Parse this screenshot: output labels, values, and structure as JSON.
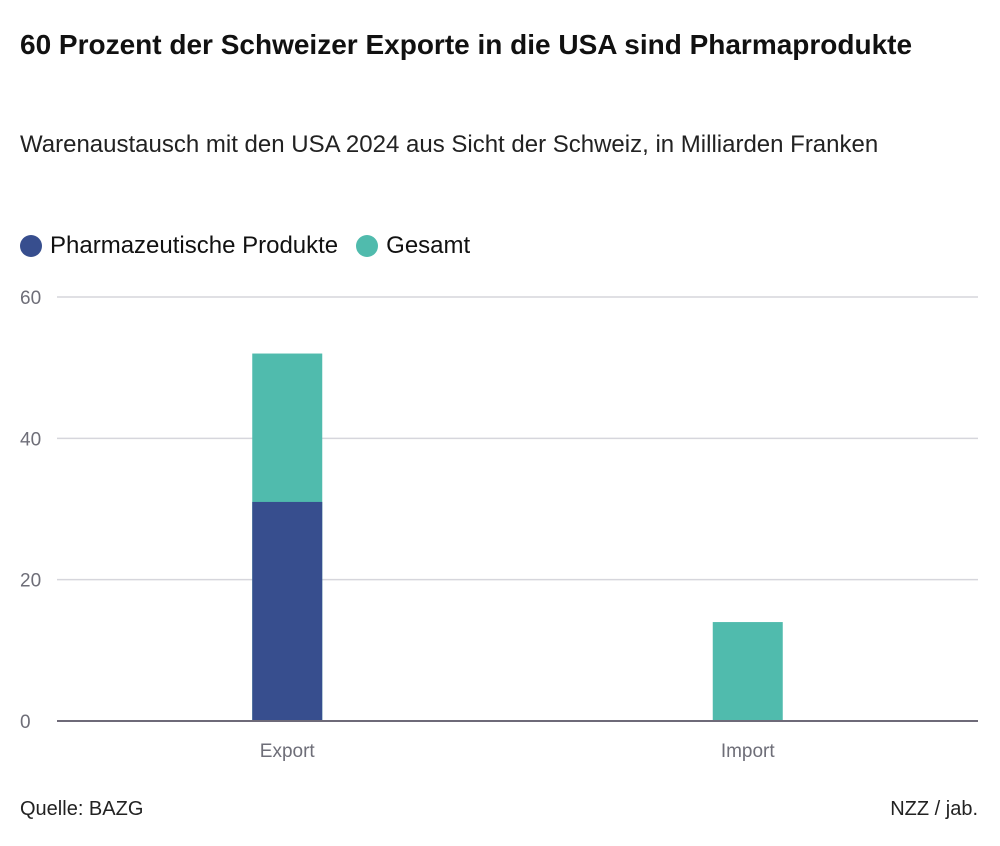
{
  "title": "60 Prozent der Schweizer Exporte in die USA sind Pharmaprodukte",
  "subtitle": "Warenaustausch mit den USA 2024 aus Sicht der Schweiz, in Milliarden Franken",
  "footer": {
    "source": "Quelle: BAZG",
    "credit": "NZZ / jab."
  },
  "chart_data": {
    "type": "bar",
    "categories": [
      "Export",
      "Import"
    ],
    "series": [
      {
        "name": "Gesamt",
        "values": [
          52,
          14
        ],
        "color": "#50bbad"
      },
      {
        "name": "Pharmazeutische Produkte",
        "values": [
          31,
          null
        ],
        "color": "#374e8e"
      }
    ],
    "overlap": true,
    "ylim": [
      0,
      60
    ],
    "yticks": [
      0,
      20,
      40,
      60
    ],
    "grid": true,
    "legend": "top-left",
    "xlabel": "",
    "ylabel": ""
  }
}
